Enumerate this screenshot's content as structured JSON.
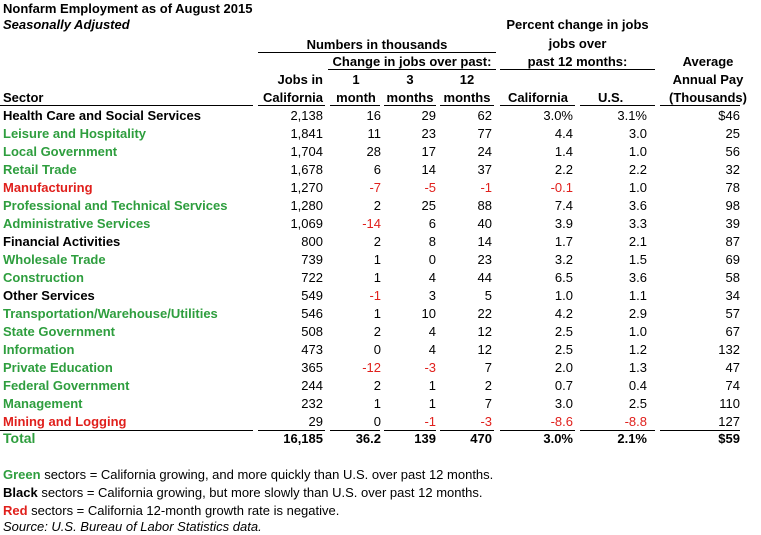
{
  "title": "Nonfarm Employment as of August 2015",
  "subtitle": "Seasonally Adjusted",
  "header": {
    "numbers_group": "Numbers in thousands",
    "change_group": "Change in jobs over past:",
    "pct_group_line1": "Percent change in jobs",
    "pct_group_line2": "jobs over",
    "pct_group_line3": "past 12 months:",
    "avg_line1": "Average",
    "avg_line2": "Annual Pay",
    "avg_line3": "(Thousands)",
    "sector": "Sector",
    "jobs_line1": "Jobs in",
    "jobs_line2": "California",
    "m1_line1": "1",
    "m1_line2": "month",
    "m3_line1": "3",
    "m3_line2": "months",
    "m12_line1": "12",
    "m12_line2": "months",
    "california": "California",
    "us": "U.S."
  },
  "colors": {
    "green": "#2e9e3e",
    "black": "#000000",
    "red": "#e0201c"
  },
  "rows": [
    {
      "sector": "Health Care and Social Services",
      "group": "black",
      "jobs": "2,138",
      "m1": "16",
      "m3": "29",
      "m12": "62",
      "ca": "3.0%",
      "us": "3.1%",
      "pay": "$46"
    },
    {
      "sector": "Leisure and Hospitality",
      "group": "green",
      "jobs": "1,841",
      "m1": "11",
      "m3": "23",
      "m12": "77",
      "ca": "4.4",
      "us": "3.0",
      "pay": "25"
    },
    {
      "sector": "Local Government",
      "group": "green",
      "jobs": "1,704",
      "m1": "28",
      "m3": "17",
      "m12": "24",
      "ca": "1.4",
      "us": "1.0",
      "pay": "56"
    },
    {
      "sector": "Retail Trade",
      "group": "green",
      "jobs": "1,678",
      "m1": "6",
      "m3": "14",
      "m12": "37",
      "ca": "2.2",
      "us": "2.2",
      "pay": "32"
    },
    {
      "sector": "Manufacturing",
      "group": "red",
      "jobs": "1,270",
      "m1": "-7",
      "m3": "-5",
      "m12": "-1",
      "ca": "-0.1",
      "us": "1.0",
      "pay": "78"
    },
    {
      "sector": "Professional and Technical Services",
      "group": "green",
      "jobs": "1,280",
      "m1": "2",
      "m3": "25",
      "m12": "88",
      "ca": "7.4",
      "us": "3.6",
      "pay": "98"
    },
    {
      "sector": "Administrative Services",
      "group": "green",
      "jobs": "1,069",
      "m1": "-14",
      "m3": "6",
      "m12": "40",
      "ca": "3.9",
      "us": "3.3",
      "pay": "39"
    },
    {
      "sector": "Financial Activities",
      "group": "black",
      "jobs": "800",
      "m1": "2",
      "m3": "8",
      "m12": "14",
      "ca": "1.7",
      "us": "2.1",
      "pay": "87"
    },
    {
      "sector": "Wholesale Trade",
      "group": "green",
      "jobs": "739",
      "m1": "1",
      "m3": "0",
      "m12": "23",
      "ca": "3.2",
      "us": "1.5",
      "pay": "69"
    },
    {
      "sector": "Construction",
      "group": "green",
      "jobs": "722",
      "m1": "1",
      "m3": "4",
      "m12": "44",
      "ca": "6.5",
      "us": "3.6",
      "pay": "58"
    },
    {
      "sector": "Other Services",
      "group": "black",
      "jobs": "549",
      "m1": "-1",
      "m3": "3",
      "m12": "5",
      "ca": "1.0",
      "us": "1.1",
      "pay": "34"
    },
    {
      "sector": "Transportation/Warehouse/Utilities",
      "group": "green",
      "jobs": "546",
      "m1": "1",
      "m3": "10",
      "m12": "22",
      "ca": "4.2",
      "us": "2.9",
      "pay": "57"
    },
    {
      "sector": "State Government",
      "group": "green",
      "jobs": "508",
      "m1": "2",
      "m3": "4",
      "m12": "12",
      "ca": "2.5",
      "us": "1.0",
      "pay": "67"
    },
    {
      "sector": "Information",
      "group": "green",
      "jobs": "473",
      "m1": "0",
      "m3": "4",
      "m12": "12",
      "ca": "2.5",
      "us": "1.2",
      "pay": "132"
    },
    {
      "sector": "Private Education",
      "group": "green",
      "jobs": "365",
      "m1": "-12",
      "m3": "-3",
      "m12": "7",
      "ca": "2.0",
      "us": "1.3",
      "pay": "47"
    },
    {
      "sector": "Federal Government",
      "group": "green",
      "jobs": "244",
      "m1": "2",
      "m3": "1",
      "m12": "2",
      "ca": "0.7",
      "us": "0.4",
      "pay": "74"
    },
    {
      "sector": "Management",
      "group": "green",
      "jobs": "232",
      "m1": "1",
      "m3": "1",
      "m12": "7",
      "ca": "3.0",
      "us": "2.5",
      "pay": "110"
    },
    {
      "sector": "Mining and Logging",
      "group": "red",
      "jobs": "29",
      "m1": "0",
      "m3": "-1",
      "m12": "-3",
      "ca": "-8.6",
      "us": "-8.8",
      "pay": "127"
    }
  ],
  "total": {
    "sector": "Total",
    "group": "green",
    "jobs": "16,185",
    "m1": "36.2",
    "m3": "139",
    "m12": "470",
    "ca": "3.0%",
    "us": "2.1%",
    "pay": "$59"
  },
  "legend": [
    {
      "word": "Green",
      "group": "green",
      "text": " sectors = California growing, and more quickly than U.S. over past 12 months."
    },
    {
      "word": "Black",
      "group": "black",
      "text": " sectors = California growing, but more slowly than U.S. over past 12 months."
    },
    {
      "word": "Red",
      "group": "red",
      "text": " sectors = California 12-month growth rate is negative."
    }
  ],
  "source": "Source: U.S. Bureau of Labor Statistics data."
}
